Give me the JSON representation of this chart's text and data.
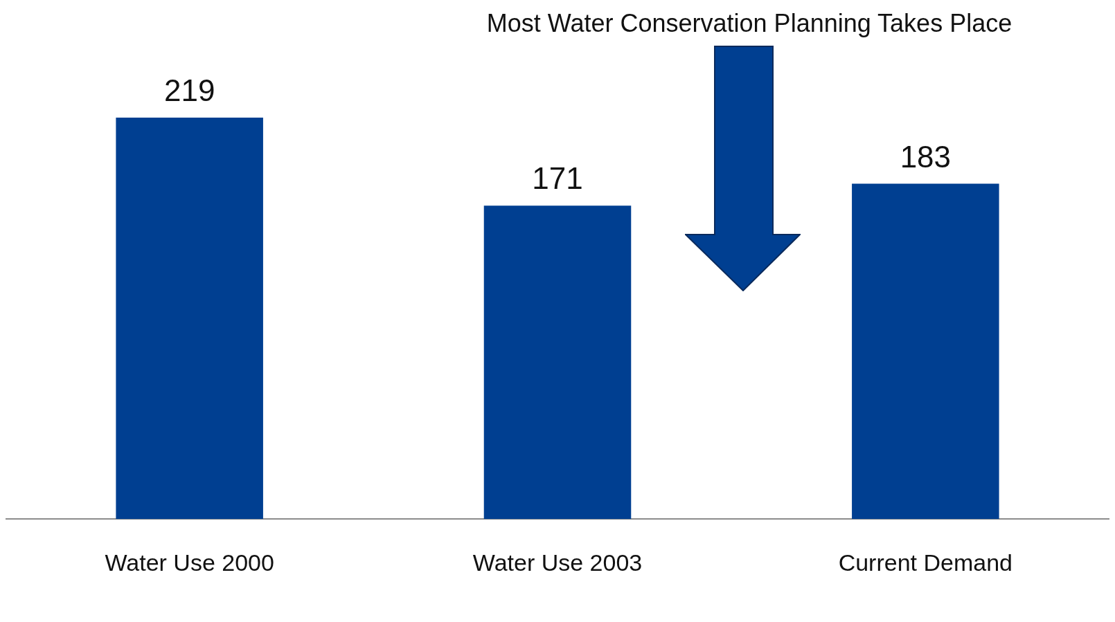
{
  "chart_data": {
    "type": "bar",
    "categories": [
      "Water Use 2000",
      "Water Use 2003",
      "Current Demand"
    ],
    "values": [
      219,
      171,
      183
    ],
    "color": "#003f91",
    "data_labels": true,
    "grid": false,
    "legend": false,
    "tick_labels": "x",
    "annotations": [
      "Most Water Conservation Planning Takes Place"
    ]
  }
}
